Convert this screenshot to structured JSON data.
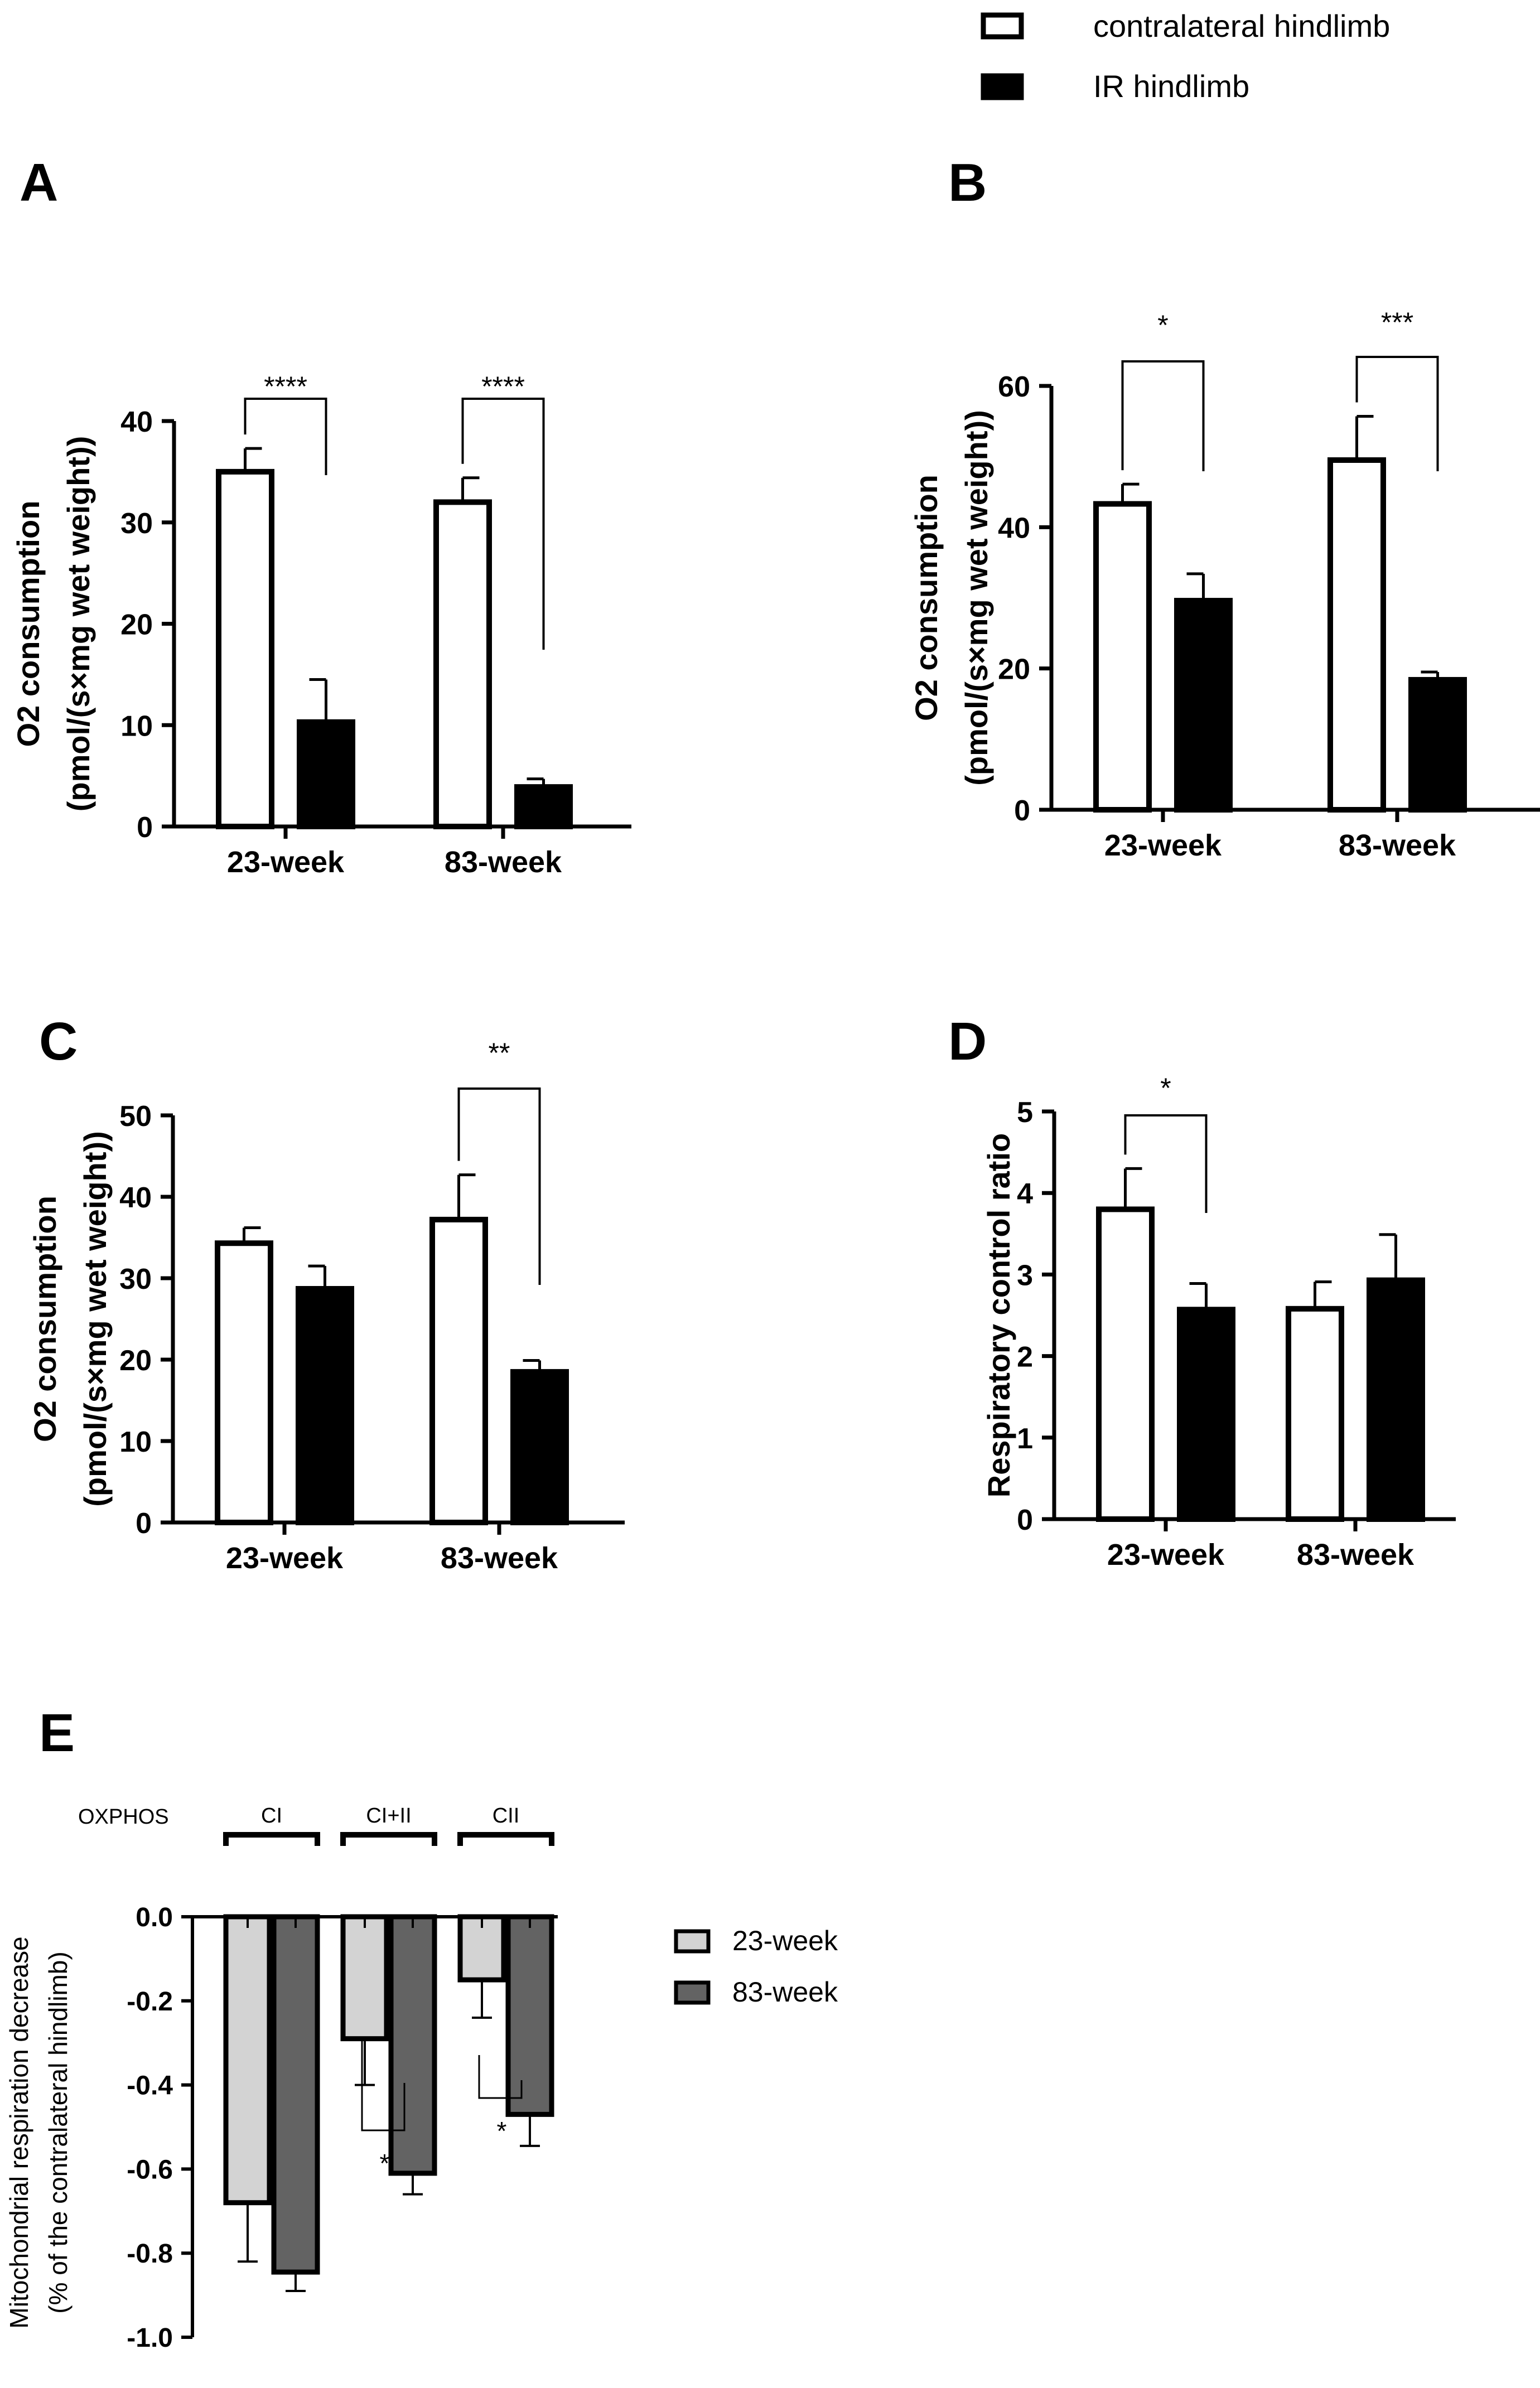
{
  "legend_top": {
    "items": [
      {
        "label": "contralateral hindlimb",
        "fill": "#ffffff"
      },
      {
        "label": "IR hindlimb",
        "fill": "#000000"
      }
    ]
  },
  "colors": {
    "contralateral": "#ffffff",
    "ir": "#000000",
    "week23": "#d3d3d3",
    "week83": "#636363",
    "stroke": "#000000"
  },
  "chart_data": [
    {
      "panel": "A",
      "type": "bar",
      "title": "",
      "ylabel": "O2 consumption",
      "ylabel2": "(pmol/(s×mg wet weight))",
      "ylim": [
        0,
        40
      ],
      "yticks": [
        0,
        10,
        20,
        30,
        40
      ],
      "categories": [
        "23-week",
        "83-week"
      ],
      "series": [
        {
          "name": "contralateral hindlimb",
          "values": [
            35,
            32
          ],
          "errors": [
            2.3,
            2.4
          ]
        },
        {
          "name": "IR hindlimb",
          "values": [
            10.3,
            3.9
          ],
          "errors": [
            4.2,
            0.8
          ]
        }
      ],
      "significance": [
        "****",
        "****"
      ]
    },
    {
      "panel": "B",
      "type": "bar",
      "title": "",
      "ylabel": "O2 consumption",
      "ylabel2": "(pmol/(s×mg wet weight))",
      "ylim": [
        0,
        60
      ],
      "yticks": [
        0,
        20,
        40,
        60
      ],
      "categories": [
        "23-week",
        "83-week"
      ],
      "series": [
        {
          "name": "contralateral hindlimb",
          "values": [
            43.3,
            49.5
          ],
          "errors": [
            2.8,
            6.2
          ]
        },
        {
          "name": "IR hindlimb",
          "values": [
            29.6,
            18.4
          ],
          "errors": [
            3.8,
            1.1
          ]
        }
      ],
      "significance": [
        "*",
        "***"
      ]
    },
    {
      "panel": "C",
      "type": "bar",
      "title": "",
      "ylabel": "O2 consumption",
      "ylabel2": "(pmol/(s×mg wet weight))",
      "ylim": [
        0,
        50
      ],
      "yticks": [
        0,
        10,
        20,
        30,
        40,
        50
      ],
      "categories": [
        "23-week",
        "83-week"
      ],
      "series": [
        {
          "name": "contralateral hindlimb",
          "values": [
            34.3,
            37.2
          ],
          "errors": [
            1.9,
            5.5
          ]
        },
        {
          "name": "IR hindlimb",
          "values": [
            28.7,
            18.5
          ],
          "errors": [
            2.8,
            1.4
          ]
        }
      ],
      "significance": [
        "",
        "**"
      ]
    },
    {
      "panel": "D",
      "type": "bar",
      "title": "",
      "ylabel": "Respiratory control ratio",
      "ylim": [
        0,
        5
      ],
      "yticks": [
        0,
        1,
        2,
        3,
        4,
        5
      ],
      "categories": [
        "23-week",
        "83-week"
      ],
      "series": [
        {
          "name": "contralateral hindlimb",
          "values": [
            3.8,
            2.58
          ],
          "errors": [
            0.5,
            0.33
          ]
        },
        {
          "name": "IR hindlimb",
          "values": [
            2.57,
            2.93
          ],
          "errors": [
            0.32,
            0.56
          ]
        }
      ],
      "significance": [
        "*",
        ""
      ]
    },
    {
      "panel": "E",
      "type": "bar",
      "title": "",
      "ylabel": "Mitochondrial respiration decrease",
      "ylabel2": "(% of the contralateral hindlimb)",
      "ylim": [
        -1.0,
        0.0
      ],
      "yticks": [
        "0.0",
        "-0.2",
        "-0.4",
        "-0.6",
        "-0.8",
        "-1.0"
      ],
      "group_header": "OXPHOS",
      "categories": [
        "CI",
        "CI+II",
        "CII"
      ],
      "series": [
        {
          "name": "23-week",
          "values": [
            -0.68,
            -0.29,
            -0.15
          ],
          "errors": [
            0.14,
            0.11,
            0.09
          ]
        },
        {
          "name": "83-week",
          "values": [
            -0.845,
            -0.61,
            -0.47
          ],
          "errors": [
            0.045,
            0.05,
            0.075
          ]
        }
      ],
      "significance": [
        "",
        "*",
        "*"
      ],
      "legend": [
        "23-week",
        "83-week"
      ]
    }
  ]
}
